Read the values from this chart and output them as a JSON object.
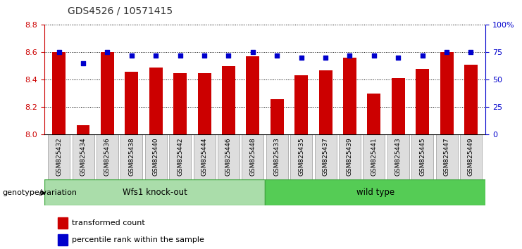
{
  "title": "GDS4526 / 10571415",
  "samples": [
    "GSM825432",
    "GSM825434",
    "GSM825436",
    "GSM825438",
    "GSM825440",
    "GSM825442",
    "GSM825444",
    "GSM825446",
    "GSM825448",
    "GSM825433",
    "GSM825435",
    "GSM825437",
    "GSM825439",
    "GSM825441",
    "GSM825443",
    "GSM825445",
    "GSM825447",
    "GSM825449"
  ],
  "bar_values": [
    8.6,
    8.07,
    8.6,
    8.46,
    8.49,
    8.45,
    8.45,
    8.5,
    8.57,
    8.26,
    8.43,
    8.47,
    8.56,
    8.3,
    8.41,
    8.48,
    8.6,
    8.51
  ],
  "dot_values": [
    75,
    65,
    75,
    72,
    72,
    72,
    72,
    72,
    75,
    72,
    70,
    70,
    72,
    72,
    70,
    72,
    75,
    75
  ],
  "ylim_left": [
    8.0,
    8.8
  ],
  "ylim_right": [
    0,
    100
  ],
  "yticks_left": [
    8.0,
    8.2,
    8.4,
    8.6,
    8.8
  ],
  "yticks_right": [
    0,
    25,
    50,
    75,
    100
  ],
  "ytick_labels_right": [
    "0",
    "25",
    "50",
    "75",
    "100%"
  ],
  "bar_color": "#cc0000",
  "dot_color": "#0000cc",
  "group1_label": "Wfs1 knock-out",
  "group2_label": "wild type",
  "group1_color": "#aaddaa",
  "group2_color": "#55cc55",
  "group1_count": 9,
  "group2_count": 9,
  "legend_bar_label": "transformed count",
  "legend_dot_label": "percentile rank within the sample",
  "xlabel_left": "genotype/variation",
  "bg_color": "#ffffff",
  "plot_bg_color": "#ffffff",
  "tick_label_bg": "#dddddd",
  "title_color": "#333333",
  "left_tick_color": "#cc0000",
  "right_tick_color": "#0000cc"
}
